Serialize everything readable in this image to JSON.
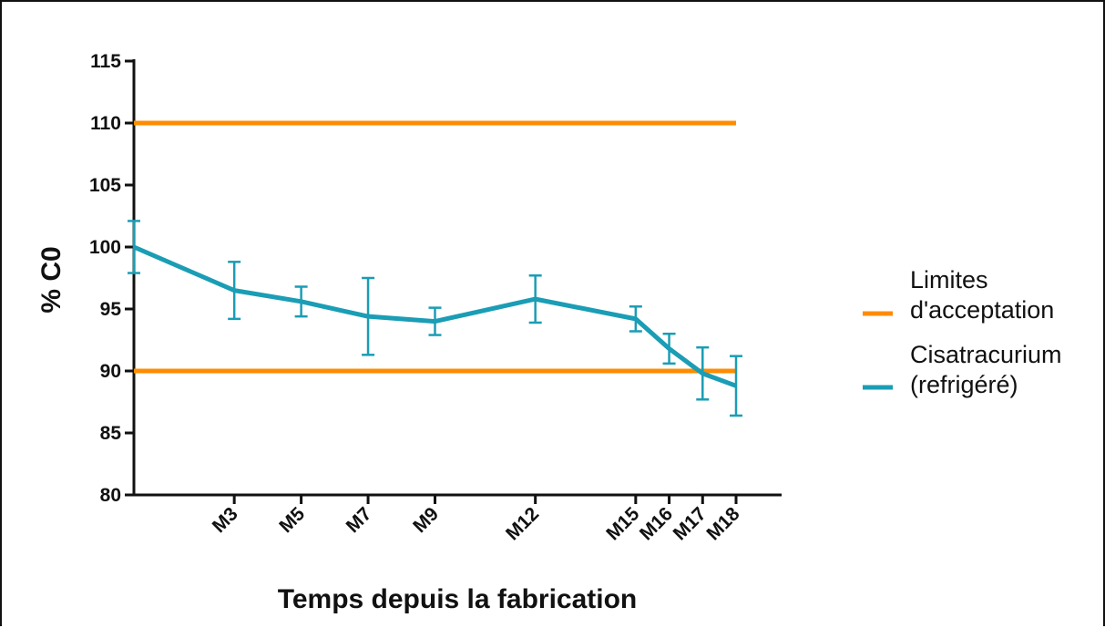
{
  "chart_data": {
    "type": "line",
    "xlabel": "Temps depuis la fabrication",
    "ylabel": "% C0",
    "ylim": [
      80,
      115
    ],
    "y_ticks": [
      80,
      85,
      90,
      95,
      100,
      105,
      110,
      115
    ],
    "x_ticks": [
      {
        "label": "M3",
        "month": 3
      },
      {
        "label": "M5",
        "month": 5
      },
      {
        "label": "M7",
        "month": 7
      },
      {
        "label": "M9",
        "month": 9
      },
      {
        "label": "M12",
        "month": 12
      },
      {
        "label": "M15",
        "month": 15
      },
      {
        "label": "M16",
        "month": 16
      },
      {
        "label": "M17",
        "month": 17
      },
      {
        "label": "M18",
        "month": 18
      }
    ],
    "xlim": [
      0,
      18.5
    ],
    "grid": false,
    "legend_position": "right",
    "colors": {
      "limits": "#FF8C00",
      "series": "#1A9DB5"
    },
    "legend": [
      {
        "key": "limits",
        "label_lines": [
          "Limites",
          "d'acceptation"
        ]
      },
      {
        "key": "series",
        "label_lines": [
          "Cisatracurium",
          "(refrigéré)"
        ]
      }
    ],
    "limit_lines": [
      {
        "y": 110,
        "x_start": 0,
        "x_end": 18
      },
      {
        "y": 90,
        "x_start": 0,
        "x_end": 18
      }
    ],
    "series": [
      {
        "name": "Cisatracurium (refrigéré)",
        "points": [
          {
            "x": 0,
            "y": 100.0,
            "err": 2.1
          },
          {
            "x": 3,
            "y": 96.5,
            "err": 2.3
          },
          {
            "x": 5,
            "y": 95.6,
            "err": 1.2
          },
          {
            "x": 7,
            "y": 94.4,
            "err": 3.1
          },
          {
            "x": 9,
            "y": 94.0,
            "err": 1.1
          },
          {
            "x": 12,
            "y": 95.8,
            "err": 1.9
          },
          {
            "x": 15,
            "y": 94.2,
            "err": 1.0
          },
          {
            "x": 16,
            "y": 91.8,
            "err": 1.2
          },
          {
            "x": 17,
            "y": 89.8,
            "err": 2.1
          },
          {
            "x": 18,
            "y": 88.8,
            "err": 2.4
          }
        ]
      }
    ]
  }
}
